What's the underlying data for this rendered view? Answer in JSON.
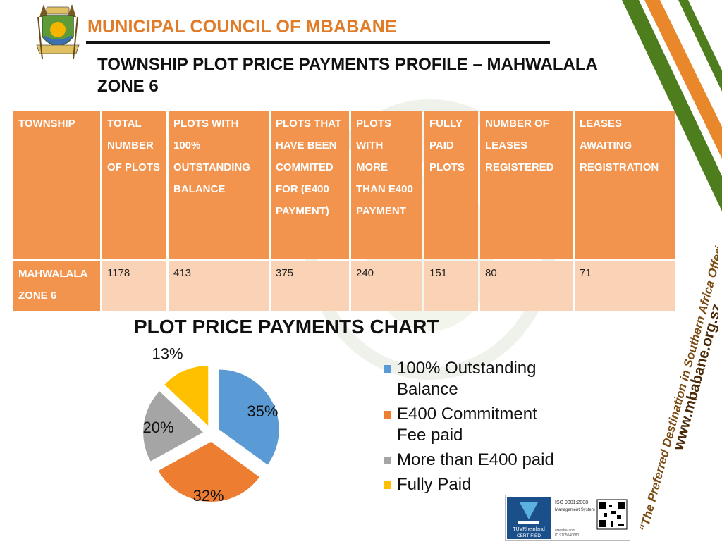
{
  "header": {
    "crest_text_top": "CITY OF MBABANE",
    "crest_text_bottom": "PROGRESS THROUGH FAITH",
    "council_name": "MUNICIPAL COUNCIL OF MBABANE",
    "page_title": "TOWNSHIP PLOT PRICE PAYMENTS PROFILE – MAHWALALA ZONE 6"
  },
  "table": {
    "headers": [
      "TOWNSHIP",
      "TOTAL NUMBER OF PLOTS",
      "PLOTS WITH 100% OUTSTANDING BALANCE",
      "PLOTS THAT HAVE BEEN COMMITED FOR (E400 PAYMENT)",
      "PLOTS WITH MORE THAN E400 PAYMENT",
      "FULLY PAID PLOTS",
      "NUMBER OF LEASES REGISTERED",
      "LEASES AWAITING REGISTRATION"
    ],
    "row": [
      "MAHWALALA ZONE 6",
      "1178",
      "413",
      "375",
      "240",
      "151",
      "80",
      "71"
    ]
  },
  "chart_data": {
    "type": "pie",
    "title": "PLOT PRICE PAYMENTS CHART",
    "categories": [
      "100% Outstanding Balance",
      "E400 Commitment Fee paid",
      "More than E400 paid",
      "Fully Paid"
    ],
    "values": [
      35,
      32,
      20,
      13
    ],
    "labels": [
      "35%",
      "32%",
      "20%",
      "13%"
    ],
    "colors": [
      "#5b9bd5",
      "#ed7d31",
      "#a5a5a5",
      "#ffc000"
    ],
    "legend_position": "right",
    "exploded": true
  },
  "legend": [
    {
      "label": "100% Outstanding Balance",
      "color": "#5b9bd5"
    },
    {
      "label": "E400 Commitment Fee paid",
      "color": "#ed7d31"
    },
    {
      "label": "More than E400 paid",
      "color": "#a5a5a5"
    },
    {
      "label": "Fully Paid",
      "color": "#ffc000"
    }
  ],
  "sidebar": {
    "slogan": "“The Preferred Destination in Southern Africa Offering Quality Life”",
    "website": "www.mbabane.org.sz"
  },
  "certification": {
    "standard": "ISO 9001:2008",
    "system": "Management System",
    "brand": "TÜVRheinland",
    "status": "CERTIFIED",
    "url": "www.tuv.com",
    "id": "ID 9105040680"
  },
  "colors": {
    "accent_orange": "#f2944e",
    "light_orange": "#fad2b5",
    "title_orange": "#e07b28",
    "stripe_green": "#4e7d1e",
    "stripe_orange": "#e8882a"
  }
}
